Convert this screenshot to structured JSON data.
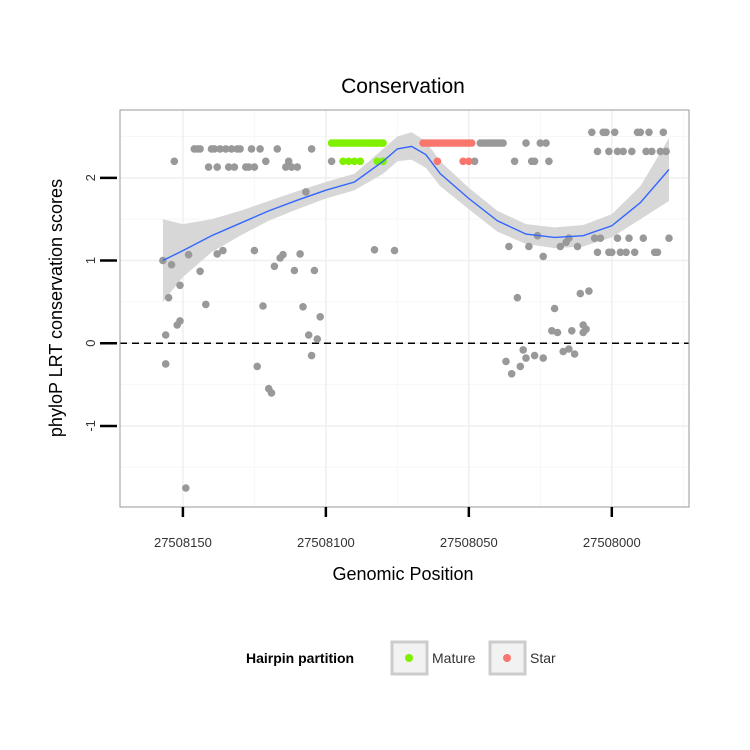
{
  "chart_data": {
    "type": "scatter",
    "title": "Conservation",
    "xlabel": "Genomic Position",
    "ylabel": "phyloP LRT conservation scores",
    "x_reversed": true,
    "xlim": [
      27508172,
      27507973
    ],
    "ylim": [
      -1.98,
      2.82
    ],
    "x_ticks": [
      {
        "value": 27508150,
        "label": "27508150"
      },
      {
        "value": 27508100,
        "label": "27508100"
      },
      {
        "value": 27508050,
        "label": "27508050"
      },
      {
        "value": 27508000,
        "label": "27508000"
      }
    ],
    "y_ticks": [
      {
        "value": -1,
        "label": "-1"
      },
      {
        "value": 0,
        "label": "0"
      },
      {
        "value": 1,
        "label": "1"
      },
      {
        "value": 2,
        "label": "2"
      }
    ],
    "reference_line": {
      "y": 0,
      "style": "dashed",
      "color": "#000000"
    },
    "grid": true,
    "legend": {
      "title": "Hairpin partition",
      "position": "bottom",
      "entries": [
        {
          "label": "Mature",
          "color": "#7FF000"
        },
        {
          "label": "Star",
          "color": "#F8766D"
        }
      ]
    },
    "colors": {
      "other": "#999999",
      "Mature": "#7FF000",
      "Star": "#F8766D",
      "smooth_line": "#3366FF",
      "smooth_band": "#D3D3D3",
      "panel_border": "#999999"
    },
    "series": [
      {
        "name": "",
        "role": "other",
        "points": [
          [
            27508157,
            1.0
          ],
          [
            27508156,
            0.1
          ],
          [
            27508156,
            -0.25
          ],
          [
            27508155,
            0.55
          ],
          [
            27508154,
            0.95
          ],
          [
            27508153,
            2.2
          ],
          [
            27508152,
            0.22
          ],
          [
            27508151,
            0.27
          ],
          [
            27508151,
            0.7
          ],
          [
            27508149,
            -1.75
          ],
          [
            27508148,
            1.07
          ],
          [
            27508146,
            2.35
          ],
          [
            27508145,
            2.35
          ],
          [
            27508144,
            2.35
          ],
          [
            27508144,
            0.87
          ],
          [
            27508142,
            0.47
          ],
          [
            27508141,
            2.13
          ],
          [
            27508140,
            2.35
          ],
          [
            27508139,
            2.35
          ],
          [
            27508138,
            2.13
          ],
          [
            27508138,
            1.08
          ],
          [
            27508137,
            2.35
          ],
          [
            27508136,
            1.12
          ],
          [
            27508135,
            2.35
          ],
          [
            27508134,
            2.13
          ],
          [
            27508133,
            2.35
          ],
          [
            27508132,
            2.13
          ],
          [
            27508131,
            2.35
          ],
          [
            27508130,
            2.35
          ],
          [
            27508128,
            2.13
          ],
          [
            27508127,
            2.13
          ],
          [
            27508126,
            2.35
          ],
          [
            27508125,
            2.13
          ],
          [
            27508125,
            1.12
          ],
          [
            27508124,
            -0.28
          ],
          [
            27508123,
            2.35
          ],
          [
            27508122,
            0.45
          ],
          [
            27508121,
            2.2
          ],
          [
            27508120,
            -0.55
          ],
          [
            27508119,
            -0.6
          ],
          [
            27508118,
            0.93
          ],
          [
            27508117,
            2.35
          ],
          [
            27508116,
            1.03
          ],
          [
            27508115,
            1.07
          ],
          [
            27508114,
            2.13
          ],
          [
            27508113,
            2.2
          ],
          [
            27508112,
            2.13
          ],
          [
            27508111,
            0.88
          ],
          [
            27508110,
            2.13
          ],
          [
            27508109,
            1.08
          ],
          [
            27508108,
            0.44
          ],
          [
            27508107,
            1.83
          ],
          [
            27508106,
            0.1
          ],
          [
            27508105,
            2.35
          ],
          [
            27508105,
            -0.15
          ],
          [
            27508104,
            0.88
          ],
          [
            27508103,
            0.05
          ],
          [
            27508102,
            0.32
          ],
          [
            27508098,
            2.2
          ],
          [
            27508076,
            1.12
          ],
          [
            27508048,
            2.2
          ],
          [
            27508046,
            2.42
          ],
          [
            27508045,
            2.42
          ],
          [
            27508044,
            2.42
          ],
          [
            27508043,
            2.42
          ],
          [
            27508042,
            2.42
          ],
          [
            27508041,
            2.42
          ],
          [
            27508040,
            2.42
          ],
          [
            27508039,
            2.42
          ],
          [
            27508038,
            2.42
          ],
          [
            27508037,
            -0.22
          ],
          [
            27508036,
            1.17
          ],
          [
            27508035,
            -0.37
          ],
          [
            27508034,
            2.2
          ],
          [
            27508033,
            0.55
          ],
          [
            27508032,
            -0.28
          ],
          [
            27508031,
            -0.08
          ],
          [
            27508030,
            2.42
          ],
          [
            27508030,
            -0.18
          ],
          [
            27508029,
            1.17
          ],
          [
            27508028,
            2.2
          ],
          [
            27508027,
            2.2
          ],
          [
            27508027,
            -0.15
          ],
          [
            27508026,
            1.3
          ],
          [
            27508025,
            2.42
          ],
          [
            27508024,
            -0.18
          ],
          [
            27508024,
            1.05
          ],
          [
            27508023,
            2.42
          ],
          [
            27508022,
            2.2
          ],
          [
            27508021,
            0.15
          ],
          [
            27508020,
            0.42
          ],
          [
            27508019,
            0.13
          ],
          [
            27508018,
            1.17
          ],
          [
            27508017,
            -0.1
          ],
          [
            27508016,
            1.22
          ],
          [
            27508015,
            1.27
          ],
          [
            27508015,
            -0.07
          ],
          [
            27508014,
            0.15
          ],
          [
            27508013,
            -0.13
          ],
          [
            27508012,
            1.17
          ],
          [
            27508011,
            0.6
          ],
          [
            27508010,
            0.22
          ],
          [
            27508010,
            0.13
          ],
          [
            27508009,
            0.17
          ],
          [
            27508008,
            0.63
          ],
          [
            27508007,
            2.55
          ],
          [
            27508006,
            1.27
          ],
          [
            27508005,
            1.1
          ],
          [
            27508005,
            2.32
          ],
          [
            27508004,
            1.27
          ],
          [
            27508003,
            2.55
          ],
          [
            27508002,
            2.55
          ],
          [
            27508001,
            1.1
          ],
          [
            27508001,
            2.32
          ],
          [
            27508000,
            1.1
          ],
          [
            27507999,
            2.55
          ],
          [
            27507998,
            1.27
          ],
          [
            27507998,
            2.32
          ],
          [
            27507997,
            1.1
          ],
          [
            27507996,
            2.32
          ],
          [
            27507995,
            1.1
          ],
          [
            27507994,
            1.27
          ],
          [
            27507993,
            2.32
          ],
          [
            27507992,
            1.1
          ],
          [
            27507991,
            2.55
          ],
          [
            27507990,
            2.55
          ],
          [
            27507989,
            1.27
          ],
          [
            27507988,
            2.32
          ],
          [
            27507987,
            2.55
          ],
          [
            27507986,
            2.32
          ],
          [
            27507985,
            1.1
          ],
          [
            27507984,
            1.1
          ],
          [
            27507983,
            2.32
          ],
          [
            27507982,
            2.55
          ],
          [
            27507981,
            2.32
          ],
          [
            27507980,
            1.27
          ],
          [
            27508083,
            1.13
          ]
        ]
      },
      {
        "name": "Mature",
        "role": "Mature",
        "points": [
          [
            27508098,
            2.42
          ],
          [
            27508097,
            2.42
          ],
          [
            27508096,
            2.42
          ],
          [
            27508095,
            2.42
          ],
          [
            27508094,
            2.42
          ],
          [
            27508093,
            2.42
          ],
          [
            27508092,
            2.42
          ],
          [
            27508091,
            2.42
          ],
          [
            27508090,
            2.42
          ],
          [
            27508089,
            2.42
          ],
          [
            27508088,
            2.42
          ],
          [
            27508087,
            2.42
          ],
          [
            27508086,
            2.42
          ],
          [
            27508085,
            2.42
          ],
          [
            27508084,
            2.42
          ],
          [
            27508083,
            2.42
          ],
          [
            27508082,
            2.42
          ],
          [
            27508081,
            2.42
          ],
          [
            27508080,
            2.42
          ],
          [
            27508094,
            2.2
          ],
          [
            27508092,
            2.2
          ],
          [
            27508090,
            2.2
          ],
          [
            27508088,
            2.2
          ],
          [
            27508082,
            2.2
          ],
          [
            27508080,
            2.2
          ]
        ]
      },
      {
        "name": "Star",
        "role": "Star",
        "points": [
          [
            27508066,
            2.42
          ],
          [
            27508065,
            2.42
          ],
          [
            27508064,
            2.42
          ],
          [
            27508063,
            2.42
          ],
          [
            27508062,
            2.42
          ],
          [
            27508061,
            2.42
          ],
          [
            27508060,
            2.42
          ],
          [
            27508059,
            2.42
          ],
          [
            27508058,
            2.42
          ],
          [
            27508057,
            2.42
          ],
          [
            27508056,
            2.42
          ],
          [
            27508055,
            2.42
          ],
          [
            27508054,
            2.42
          ],
          [
            27508053,
            2.42
          ],
          [
            27508052,
            2.42
          ],
          [
            27508051,
            2.42
          ],
          [
            27508050,
            2.42
          ],
          [
            27508049,
            2.42
          ],
          [
            27508061,
            2.2
          ],
          [
            27508052,
            2.2
          ],
          [
            27508050,
            2.2
          ]
        ]
      }
    ],
    "smooth": {
      "x": [
        27508157,
        27508150,
        27508140,
        27508130,
        27508120,
        27508110,
        27508100,
        27508090,
        27508080,
        27508075,
        27508070,
        27508065,
        27508060,
        27508050,
        27508040,
        27508030,
        27508020,
        27508010,
        27508000,
        27507990,
        27507980
      ],
      "y": [
        1.0,
        1.12,
        1.3,
        1.45,
        1.6,
        1.73,
        1.85,
        1.95,
        2.2,
        2.35,
        2.38,
        2.28,
        2.05,
        1.75,
        1.48,
        1.32,
        1.28,
        1.3,
        1.42,
        1.7,
        2.1
      ],
      "lower": [
        0.5,
        0.8,
        1.1,
        1.3,
        1.48,
        1.62,
        1.75,
        1.85,
        2.05,
        2.2,
        2.22,
        2.12,
        1.9,
        1.62,
        1.35,
        1.2,
        1.15,
        1.17,
        1.28,
        1.5,
        1.72
      ],
      "upper": [
        1.5,
        1.44,
        1.5,
        1.6,
        1.72,
        1.84,
        1.95,
        2.05,
        2.35,
        2.5,
        2.55,
        2.44,
        2.2,
        1.88,
        1.6,
        1.44,
        1.4,
        1.43,
        1.56,
        1.9,
        2.48
      ]
    }
  }
}
